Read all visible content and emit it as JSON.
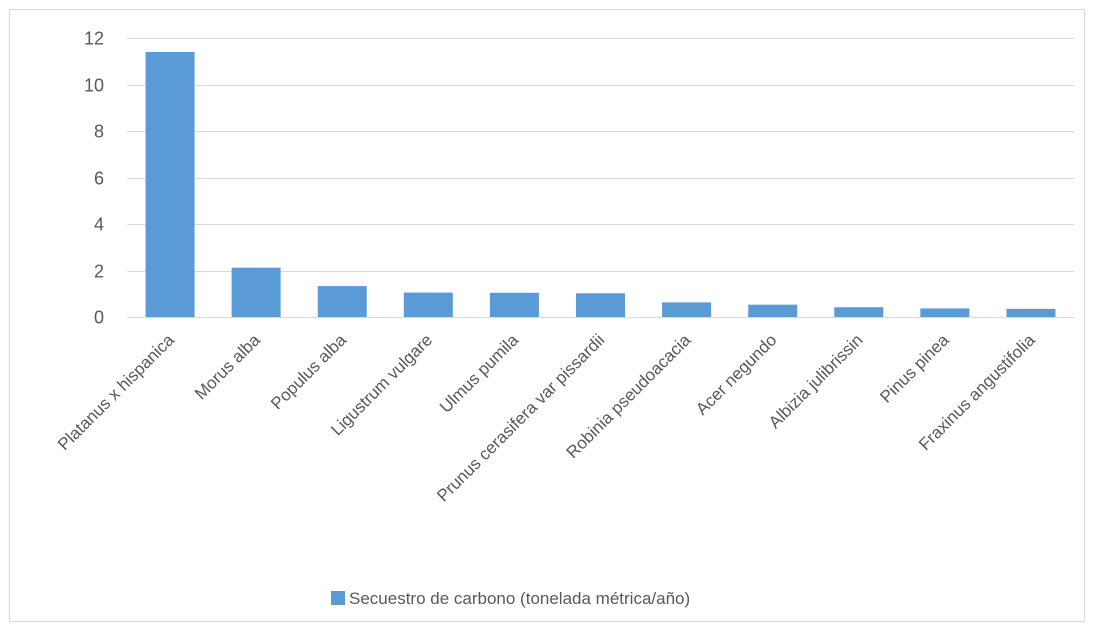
{
  "chart_data": {
    "type": "bar",
    "categories": [
      "Platanus x hispanica",
      "Morus alba",
      "Populus alba",
      "Ligustrum vulgare",
      "Ulmus pumila",
      "Prunus cerasifera var pissardii",
      "Robinia pseudoacacia",
      "Acer negundo",
      "Albizia julibrissin",
      "Pinus pinea",
      "Fraxinus angustifolia"
    ],
    "series": [
      {
        "name": "Secuestro de carbono (tonelada métrica/año)",
        "values": [
          11.4,
          2.12,
          1.33,
          1.05,
          1.04,
          1.02,
          0.63,
          0.53,
          0.42,
          0.37,
          0.35
        ]
      }
    ],
    "yticks": [
      0,
      2,
      4,
      6,
      8,
      10,
      12
    ],
    "ylim": [
      0,
      12
    ],
    "grid": true,
    "legend_position": "bottom",
    "colors": {
      "bar": "#5b9bd5",
      "grid": "#d9d9d9",
      "text": "#595959"
    }
  }
}
